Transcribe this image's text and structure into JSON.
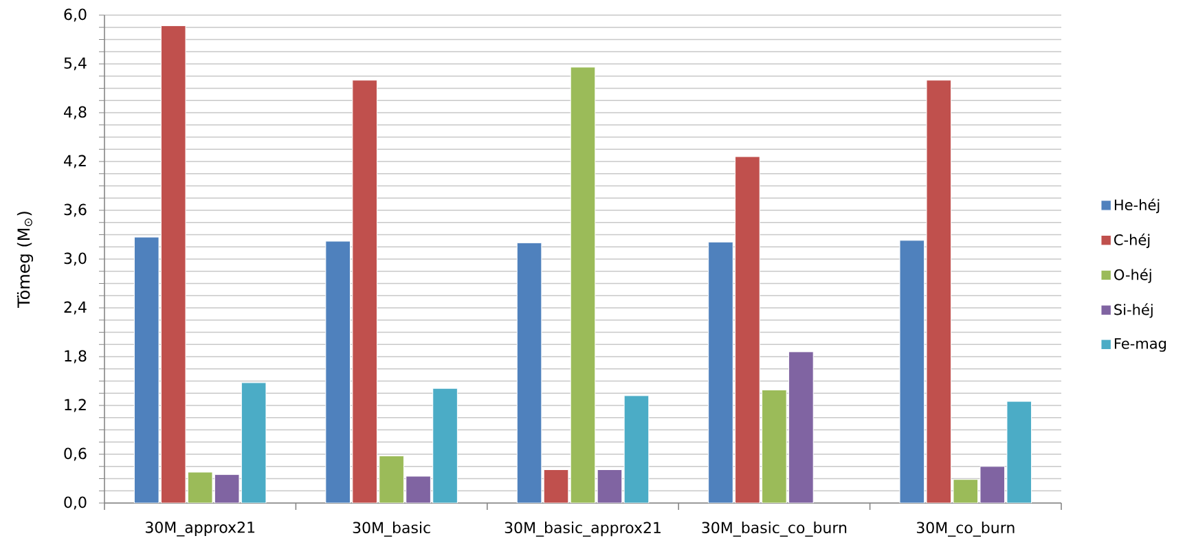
{
  "chart_data": {
    "type": "bar",
    "ylabel": "Tömeg (M$_{⊙}$)",
    "categories": [
      "30M_approx21",
      "30M_basic",
      "30M_basic_approx21",
      "30M_basic_co_burn",
      "30M_co_burn"
    ],
    "series": [
      {
        "name": "He-héj",
        "color": "#4f81bd",
        "values": [
          3.27,
          3.22,
          3.2,
          3.21,
          3.23
        ]
      },
      {
        "name": "C-héj",
        "color": "#c0504d",
        "values": [
          5.87,
          5.2,
          0.41,
          4.26,
          5.2
        ]
      },
      {
        "name": "O-héj",
        "color": "#9bbb59",
        "values": [
          0.38,
          0.58,
          5.36,
          1.39,
          0.29
        ]
      },
      {
        "name": "Si-héj",
        "color": "#8064a2",
        "values": [
          0.35,
          0.33,
          0.41,
          1.86,
          0.45
        ]
      },
      {
        "name": "Fe-mag",
        "color": "#4bacc6",
        "values": [
          1.48,
          1.41,
          1.32,
          null,
          1.25
        ]
      }
    ],
    "ylim": [
      0,
      6
    ],
    "yticks": [
      {
        "value": 0,
        "label": "0,0"
      },
      {
        "value": 0.15,
        "label": null
      },
      {
        "value": 0.3,
        "label": null
      },
      {
        "value": 0.45,
        "label": null
      },
      {
        "value": 0.6,
        "label": "0,6"
      },
      {
        "value": 0.75,
        "label": null
      },
      {
        "value": 0.9,
        "label": null
      },
      {
        "value": 1.05,
        "label": null
      },
      {
        "value": 1.2,
        "label": "1,2"
      },
      {
        "value": 1.35,
        "label": null
      },
      {
        "value": 1.5,
        "label": null
      },
      {
        "value": 1.65,
        "label": null
      },
      {
        "value": 1.8,
        "label": "1,8"
      },
      {
        "value": 1.95,
        "label": null
      },
      {
        "value": 2.1,
        "label": null
      },
      {
        "value": 2.25,
        "label": null
      },
      {
        "value": 2.4,
        "label": "2,4"
      },
      {
        "value": 2.55,
        "label": null
      },
      {
        "value": 2.7,
        "label": null
      },
      {
        "value": 2.85,
        "label": null
      },
      {
        "value": 3.0,
        "label": "3,0"
      },
      {
        "value": 3.15,
        "label": null
      },
      {
        "value": 3.3,
        "label": null
      },
      {
        "value": 3.45,
        "label": null
      },
      {
        "value": 3.6,
        "label": "3,6"
      },
      {
        "value": 3.75,
        "label": null
      },
      {
        "value": 3.9,
        "label": null
      },
      {
        "value": 4.05,
        "label": null
      },
      {
        "value": 4.2,
        "label": "4,2"
      },
      {
        "value": 4.35,
        "label": null
      },
      {
        "value": 4.5,
        "label": null
      },
      {
        "value": 4.65,
        "label": null
      },
      {
        "value": 4.8,
        "label": "4,8"
      },
      {
        "value": 4.95,
        "label": null
      },
      {
        "value": 5.1,
        "label": null
      },
      {
        "value": 5.25,
        "label": null
      },
      {
        "value": 5.4,
        "label": "5,4"
      },
      {
        "value": 5.55,
        "label": null
      },
      {
        "value": 5.7,
        "label": null
      },
      {
        "value": 5.85,
        "label": null
      },
      {
        "value": 6.0,
        "label": "6,0"
      }
    ],
    "grid": "y",
    "legend": "right"
  }
}
